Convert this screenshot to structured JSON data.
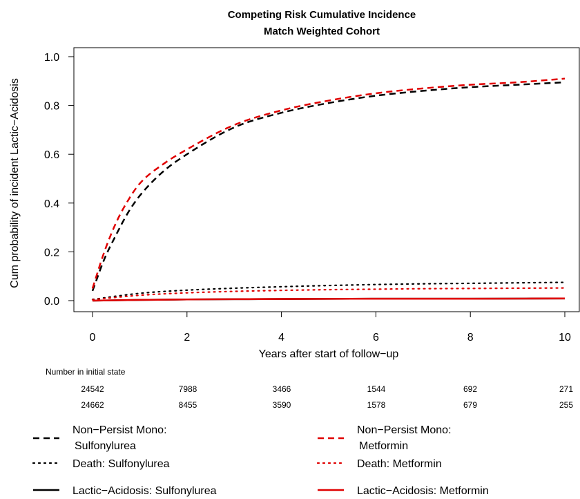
{
  "chart_data": {
    "type": "line",
    "title": "Competing Risk Cumulative Incidence",
    "subtitle": "Match Weighted Cohort",
    "xlabel": "Years after start of follow−up",
    "ylabel": "Cum probability of incident Lactic−Acidosis",
    "xlim": [
      0,
      10
    ],
    "ylim": [
      0,
      1
    ],
    "x_ticks": [
      "0",
      "2",
      "4",
      "6",
      "8",
      "10"
    ],
    "y_ticks": [
      "0.0",
      "0.2",
      "0.4",
      "0.6",
      "0.8",
      "1.0"
    ],
    "grid": false,
    "series": [
      {
        "group": "nonpersist",
        "color": "#000000",
        "style": "dashed",
        "x": [
          0,
          0.25,
          0.5,
          0.75,
          1,
          1.5,
          2,
          3,
          4,
          5,
          6,
          7,
          8,
          9,
          10
        ],
        "y": [
          0.04,
          0.17,
          0.27,
          0.36,
          0.43,
          0.53,
          0.6,
          0.71,
          0.77,
          0.81,
          0.84,
          0.86,
          0.875,
          0.885,
          0.895
        ]
      },
      {
        "group": "nonpersist",
        "color": "#e00000",
        "style": "dashed",
        "x": [
          0,
          0.25,
          0.5,
          0.75,
          1,
          1.5,
          2,
          3,
          4,
          5,
          6,
          7,
          8,
          9,
          10
        ],
        "y": [
          0.05,
          0.2,
          0.32,
          0.41,
          0.48,
          0.56,
          0.62,
          0.72,
          0.78,
          0.82,
          0.85,
          0.87,
          0.885,
          0.895,
          0.91
        ]
      },
      {
        "group": "death",
        "color": "#000000",
        "style": "dotted",
        "x": [
          0,
          1,
          2,
          3,
          4,
          5,
          6,
          7,
          8,
          9,
          10
        ],
        "y": [
          0.005,
          0.03,
          0.043,
          0.051,
          0.057,
          0.062,
          0.066,
          0.069,
          0.071,
          0.073,
          0.075
        ]
      },
      {
        "group": "death",
        "color": "#e00000",
        "style": "dotted",
        "x": [
          0,
          1,
          2,
          3,
          4,
          5,
          6,
          7,
          8,
          9,
          10
        ],
        "y": [
          0.004,
          0.022,
          0.032,
          0.038,
          0.042,
          0.045,
          0.047,
          0.049,
          0.05,
          0.051,
          0.052
        ]
      },
      {
        "group": "la",
        "color": "#000000",
        "style": "solid",
        "x": [
          0,
          1,
          2,
          3,
          4,
          6,
          8,
          10
        ],
        "y": [
          0.0,
          0.003,
          0.005,
          0.006,
          0.007,
          0.008,
          0.008,
          0.009
        ]
      },
      {
        "group": "la",
        "color": "#e00000",
        "style": "solid",
        "x": [
          0,
          1,
          2,
          3,
          4,
          6,
          8,
          10
        ],
        "y": [
          0.0,
          0.003,
          0.005,
          0.006,
          0.007,
          0.008,
          0.008,
          0.009
        ]
      }
    ],
    "risk_table": {
      "title": "Number in initial state",
      "rows": [
        [
          "24542",
          "7988",
          "3466",
          "1544",
          "692",
          "271"
        ],
        [
          "24662",
          "8455",
          "3590",
          "1578",
          "679",
          "255"
        ]
      ]
    },
    "legend": {
      "placement": "bottom",
      "items": [
        {
          "lines": [
            "Non−Persist Mono:",
            "Sulfonylurea"
          ],
          "color": "#000000",
          "style": "dashed"
        },
        {
          "lines": [
            "Death: Sulfonylurea"
          ],
          "color": "#000000",
          "style": "dotted"
        },
        {
          "lines": [
            "Lactic−Acidosis: Sulfonylurea"
          ],
          "color": "#000000",
          "style": "solid"
        },
        {
          "lines": [
            "Non−Persist Mono:",
            "Metformin"
          ],
          "color": "#e00000",
          "style": "dashed"
        },
        {
          "lines": [
            "Death: Metformin"
          ],
          "color": "#e00000",
          "style": "dotted"
        },
        {
          "lines": [
            "Lactic−Acidosis: Metformin"
          ],
          "color": "#e00000",
          "style": "solid"
        }
      ]
    }
  }
}
